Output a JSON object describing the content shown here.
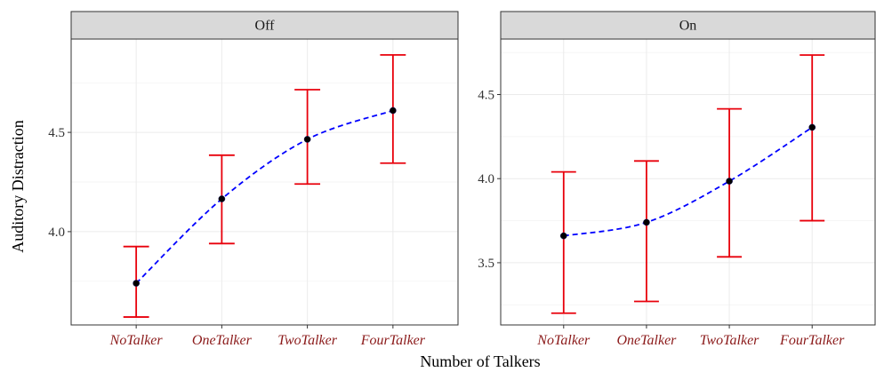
{
  "chart_data": {
    "type": "line",
    "xlabel": "Number of Talkers",
    "ylabel": "Auditory Distraction",
    "categories": [
      "NoTalker",
      "OneTalker",
      "TwoTalker",
      "FourTalker"
    ],
    "grid": true,
    "colors": {
      "line": "#0000ff",
      "errorbar": "#e8000b",
      "point": "#000000",
      "tick_label": "#8b1a1a",
      "strip_bg": "#d9d9d9",
      "grid": "#ebebeb"
    },
    "panels": [
      {
        "strip": "Off",
        "ylim": [
          3.53,
          4.97
        ],
        "yticks": [
          4.0,
          4.5
        ],
        "ytick_labels": [
          "4.0",
          "4.5"
        ],
        "mean": [
          3.74,
          4.165,
          4.465,
          4.61
        ],
        "lower": [
          3.57,
          3.94,
          4.24,
          4.345
        ],
        "upper": [
          3.925,
          4.385,
          4.715,
          4.89
        ]
      },
      {
        "strip": "On",
        "ylim": [
          3.13,
          4.83
        ],
        "yticks": [
          3.5,
          4.0,
          4.5
        ],
        "ytick_labels": [
          "3.5",
          "4.0",
          "4.5"
        ],
        "mean": [
          3.66,
          3.74,
          3.985,
          4.305
        ],
        "lower": [
          3.2,
          3.27,
          3.535,
          3.75
        ],
        "upper": [
          4.04,
          4.105,
          4.415,
          4.735
        ]
      }
    ]
  }
}
